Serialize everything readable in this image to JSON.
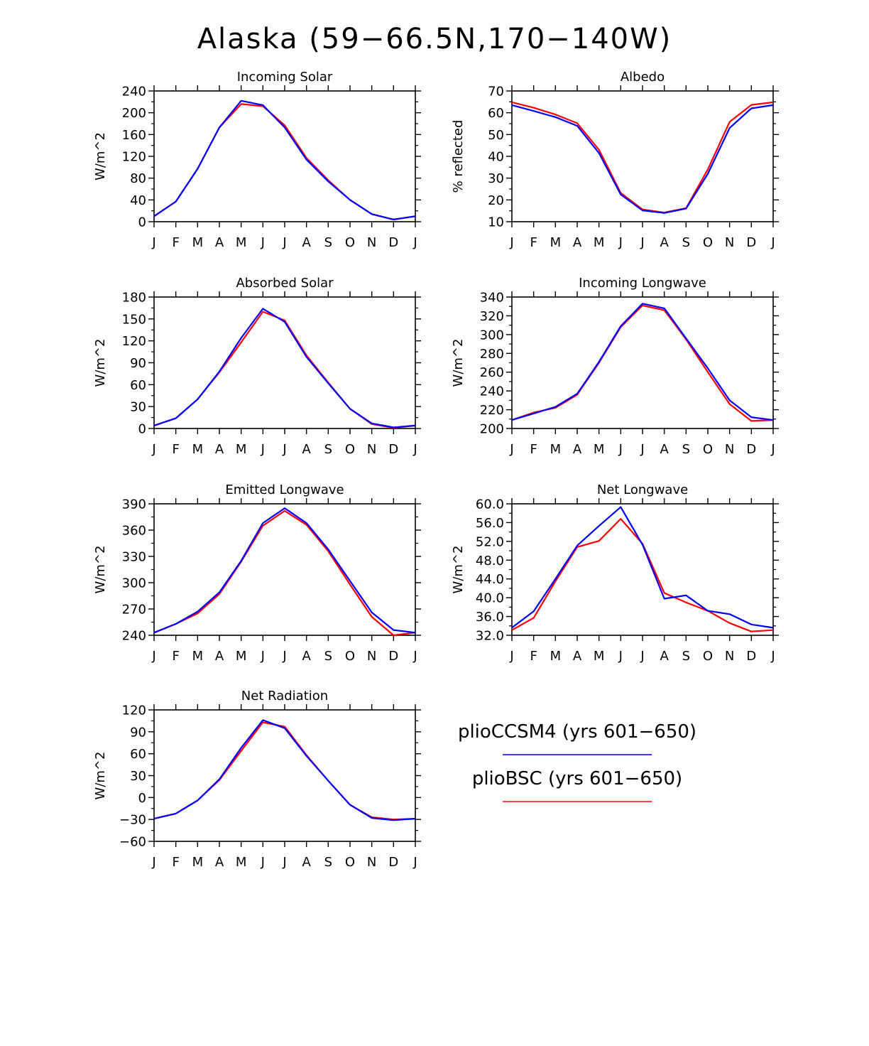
{
  "figure": {
    "title": "Alaska (59−66.5N,170−140W)",
    "legend": [
      {
        "label": "plioCCSM4 (yrs 601−650)",
        "color": "#0000ff"
      },
      {
        "label": "plioBSC (yrs 601−650)",
        "color": "#ff0000"
      }
    ]
  },
  "chart_data": [
    {
      "type": "line",
      "title": "Incoming Solar",
      "xlabel": "",
      "ylabel": "W/m^2",
      "categories": [
        "J",
        "F",
        "M",
        "A",
        "M",
        "J",
        "J",
        "A",
        "S",
        "O",
        "N",
        "D",
        "J"
      ],
      "ylim": [
        0,
        240
      ],
      "yticks": [
        0,
        40,
        80,
        120,
        160,
        200,
        240
      ],
      "ytick_labels": [
        "0",
        "40",
        "80",
        "120",
        "160",
        "200",
        "240"
      ],
      "series": [
        {
          "name": "plioBSC (yrs 601−650)",
          "color": "#ff0000",
          "values": [
            10,
            37,
            97,
            173,
            216,
            212,
            177,
            117,
            76,
            40,
            14,
            4,
            10
          ]
        },
        {
          "name": "plioCCSM4 (yrs 601−650)",
          "color": "#0000ff",
          "values": [
            10,
            37,
            97,
            173,
            222,
            214,
            173,
            114,
            74,
            40,
            14,
            4,
            10
          ]
        }
      ]
    },
    {
      "type": "line",
      "title": "Albedo",
      "xlabel": "",
      "ylabel": "% reflected",
      "categories": [
        "J",
        "F",
        "M",
        "A",
        "M",
        "J",
        "J",
        "A",
        "S",
        "O",
        "N",
        "D",
        "J"
      ],
      "ylim": [
        10,
        70
      ],
      "yticks": [
        10,
        20,
        30,
        40,
        50,
        60,
        70
      ],
      "ytick_labels": [
        "10",
        "20",
        "30",
        "40",
        "50",
        "60",
        "70"
      ],
      "series": [
        {
          "name": "plioBSC (yrs 601−650)",
          "color": "#ff0000",
          "values": [
            64.8,
            62.3,
            59.2,
            55.2,
            43,
            23.2,
            15.6,
            14.2,
            16.2,
            34,
            55.8,
            63.6,
            64.8
          ]
        },
        {
          "name": "plioCCSM4 (yrs 601−650)",
          "color": "#0000ff",
          "values": [
            63.5,
            60.8,
            58,
            54,
            41.5,
            22.5,
            15.2,
            14,
            16,
            32,
            53,
            62,
            63.5
          ]
        }
      ]
    },
    {
      "type": "line",
      "title": "Absorbed Solar",
      "xlabel": "",
      "ylabel": "W/m^2",
      "categories": [
        "J",
        "F",
        "M",
        "A",
        "M",
        "J",
        "J",
        "A",
        "S",
        "O",
        "N",
        "D",
        "J"
      ],
      "ylim": [
        0,
        180
      ],
      "yticks": [
        0,
        30,
        60,
        90,
        120,
        150,
        180
      ],
      "ytick_labels": [
        "0",
        "30",
        "60",
        "90",
        "120",
        "150",
        "180"
      ],
      "series": [
        {
          "name": "plioBSC (yrs 601−650)",
          "color": "#ff0000",
          "values": [
            4,
            14,
            40,
            77,
            118,
            160,
            148,
            100,
            63,
            27,
            6,
            1,
            4
          ]
        },
        {
          "name": "plioCCSM4 (yrs 601−650)",
          "color": "#0000ff",
          "values": [
            4,
            14,
            40,
            78,
            124,
            164,
            146,
            98,
            62,
            27,
            7,
            1.5,
            4
          ]
        }
      ]
    },
    {
      "type": "line",
      "title": "Incoming Longwave",
      "xlabel": "",
      "ylabel": "W/m^2",
      "categories": [
        "J",
        "F",
        "M",
        "A",
        "M",
        "J",
        "J",
        "A",
        "S",
        "O",
        "N",
        "D",
        "J"
      ],
      "ylim": [
        200,
        340
      ],
      "yticks": [
        200,
        220,
        240,
        260,
        280,
        300,
        320,
        340
      ],
      "ytick_labels": [
        "200",
        "220",
        "240",
        "260",
        "280",
        "300",
        "320",
        "340"
      ],
      "series": [
        {
          "name": "plioBSC (yrs 601−650)",
          "color": "#ff0000",
          "values": [
            209,
            217,
            222,
            236,
            270,
            308,
            331,
            326,
            295,
            260,
            226,
            208,
            209
          ]
        },
        {
          "name": "plioCCSM4 (yrs 601−650)",
          "color": "#0000ff",
          "values": [
            209,
            216,
            223,
            237,
            271,
            309,
            333,
            328,
            296,
            264,
            230,
            212,
            209
          ]
        }
      ]
    },
    {
      "type": "line",
      "title": "Emitted Longwave",
      "xlabel": "",
      "ylabel": "W/m^2",
      "categories": [
        "J",
        "F",
        "M",
        "A",
        "M",
        "J",
        "J",
        "A",
        "S",
        "O",
        "N",
        "D",
        "J"
      ],
      "ylim": [
        240,
        390
      ],
      "yticks": [
        240,
        270,
        300,
        330,
        360,
        390
      ],
      "ytick_labels": [
        "240",
        "270",
        "300",
        "330",
        "360",
        "390"
      ],
      "series": [
        {
          "name": "plioBSC (yrs 601−650)",
          "color": "#ff0000",
          "values": [
            243,
            253,
            265,
            287,
            324,
            365,
            382,
            366,
            336,
            298,
            261,
            240,
            243
          ]
        },
        {
          "name": "plioCCSM4 (yrs 601−650)",
          "color": "#0000ff",
          "values": [
            243,
            253,
            267,
            289,
            325,
            368,
            385,
            368,
            338,
            302,
            266,
            246,
            243
          ]
        }
      ]
    },
    {
      "type": "line",
      "title": "Net Longwave",
      "xlabel": "",
      "ylabel": "W/m^2",
      "categories": [
        "J",
        "F",
        "M",
        "A",
        "M",
        "J",
        "J",
        "A",
        "S",
        "O",
        "N",
        "D",
        "J"
      ],
      "ylim": [
        32,
        60
      ],
      "yticks": [
        32,
        36,
        40,
        44,
        48,
        52,
        56,
        60
      ],
      "ytick_labels": [
        "32.0",
        "36.0",
        "40.0",
        "44.0",
        "48.0",
        "52.0",
        "56.0",
        "60.0"
      ],
      "series": [
        {
          "name": "plioBSC (yrs 601−650)",
          "color": "#ff0000",
          "values": [
            33.1,
            35.7,
            43.5,
            50.8,
            52.1,
            56.8,
            51.5,
            41.0,
            39.0,
            37.2,
            34.6,
            32.8,
            33.1
          ]
        },
        {
          "name": "plioCCSM4 (yrs 601−650)",
          "color": "#0000ff",
          "values": [
            33.6,
            37.1,
            44.0,
            51.1,
            55.3,
            59.3,
            51.3,
            39.8,
            40.5,
            37.2,
            36.5,
            34.3,
            33.6
          ]
        }
      ]
    },
    {
      "type": "line",
      "title": "Net Radiation",
      "xlabel": "",
      "ylabel": "W/m^2",
      "categories": [
        "J",
        "F",
        "M",
        "A",
        "M",
        "J",
        "J",
        "A",
        "S",
        "O",
        "N",
        "D",
        "J"
      ],
      "ylim": [
        -60,
        120
      ],
      "yticks": [
        -60,
        -30,
        0,
        30,
        60,
        90,
        120
      ],
      "ytick_labels": [
        "−60",
        "−30",
        "0",
        "30",
        "60",
        "90",
        "120"
      ],
      "series": [
        {
          "name": "plioBSC (yrs 601−650)",
          "color": "#ff0000",
          "values": [
            -29,
            -22,
            -4,
            24,
            64,
            103,
            97,
            58,
            23,
            -10,
            -27,
            -30,
            -29
          ]
        },
        {
          "name": "plioCCSM4 (yrs 601−650)",
          "color": "#0000ff",
          "values": [
            -29,
            -22,
            -4,
            25,
            68,
            106,
            95,
            57,
            23,
            -10,
            -28,
            -31,
            -29
          ]
        }
      ]
    }
  ]
}
